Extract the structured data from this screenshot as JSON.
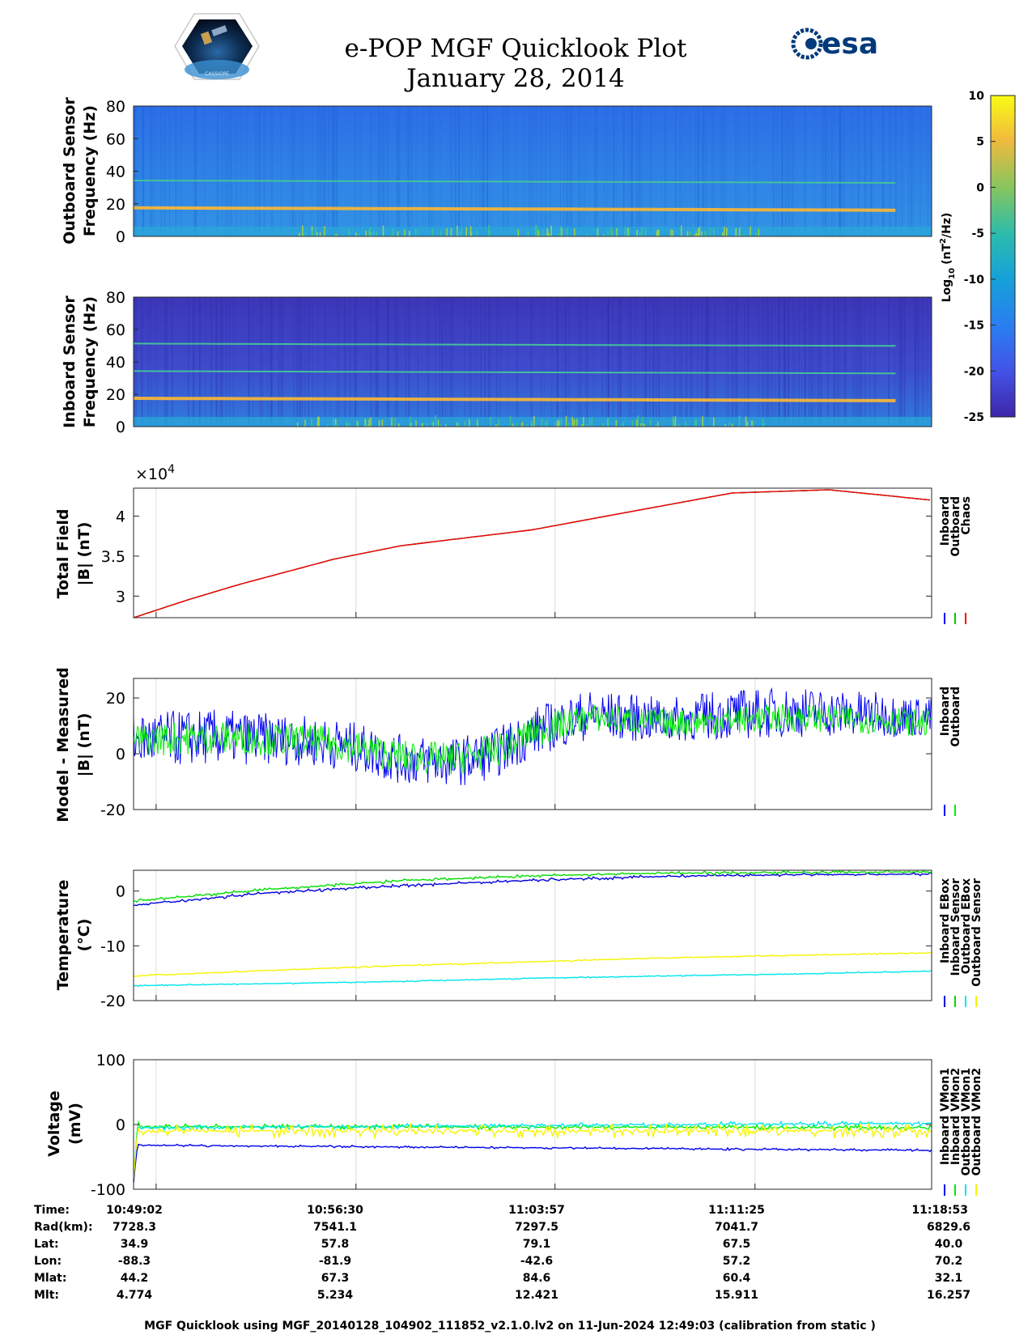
{
  "header": {
    "title": "e-POP MGF Quicklook Plot",
    "date": "January 28, 2014",
    "logo_left": "CASSIOPE",
    "logo_right": "esa"
  },
  "colorbar": {
    "label": "Log10 (nT²/Hz)",
    "label_main": "Log",
    "label_sub": "10",
    "label_rest": "(nT",
    "label_sup": "2",
    "label_end": "/Hz)",
    "ticks": [
      "10",
      "5",
      "0",
      "-5",
      "-10",
      "-15",
      "-20",
      "-25"
    ],
    "range": [
      -25,
      10
    ]
  },
  "footer": {
    "text": "MGF Quicklook using MGF_20140128_104902_111852_v2.1.0.lv2 on 11-Jun-2024 12:49:03 (calibration from static )"
  },
  "table": {
    "row_labels": [
      "Time:",
      "Rad(km):",
      "Lat:",
      "Lon:",
      "Mlat:",
      "Mlt:"
    ],
    "columns": [
      [
        "10:49:02",
        "7728.3",
        "34.9",
        "-88.3",
        "44.2",
        "4.774"
      ],
      [
        "10:56:30",
        "7541.1",
        "57.8",
        "-81.9",
        "67.3",
        "5.234"
      ],
      [
        "11:03:57",
        "7297.5",
        "79.1",
        "-42.6",
        "84.6",
        "12.421"
      ],
      [
        "11:11:25",
        "7041.7",
        "67.5",
        "57.2",
        "60.4",
        "15.911"
      ],
      [
        "11:18:53",
        "6829.6",
        "40.0",
        "70.2",
        "32.1",
        "16.257"
      ]
    ]
  },
  "chart_data": [
    {
      "type": "heatmap",
      "name": "outboard-spectrogram",
      "ylabel": [
        "Outboard Sensor",
        "Frequency (Hz)"
      ],
      "ylim": [
        0,
        80
      ],
      "yticks": [
        "80",
        "60",
        "40",
        "20",
        "0"
      ],
      "colorbar": "Log10 (nT^2/Hz)",
      "lines_hz": [
        17,
        34
      ],
      "notes": "Background ~ -15 log10; strong line near 17 Hz, weaker line near 34 Hz"
    },
    {
      "type": "heatmap",
      "name": "inboard-spectrogram",
      "ylabel": [
        "Inboard Sensor",
        "Frequency (Hz)"
      ],
      "ylim": [
        0,
        80
      ],
      "yticks": [
        "80",
        "60",
        "40",
        "20",
        "0"
      ],
      "colorbar": "Log10 (nT^2/Hz)",
      "lines_hz": [
        17,
        34,
        51
      ],
      "notes": "Background ~ -20 log10; lines near 17, 34 and 51 Hz"
    },
    {
      "type": "line",
      "name": "total-field",
      "ylabel": [
        "Total Field",
        "|B| (nT)"
      ],
      "multiplier": "×10",
      "exponent": "4",
      "ylim": [
        2.73,
        4.35
      ],
      "yticks": [
        3,
        3.5,
        4
      ],
      "ytick_labels": [
        "3",
        "3.5",
        "4"
      ],
      "x_minutes": [
        0,
        2,
        4,
        7.47,
        10,
        14.93,
        18,
        22.4,
        26,
        27.5,
        29.85
      ],
      "series": [
        {
          "name": "Inboard",
          "color": "#0000ff",
          "values": [
            2.73,
            2.95,
            3.15,
            3.46,
            3.63,
            3.83,
            4.02,
            4.29,
            4.33,
            4.28,
            4.2
          ]
        },
        {
          "name": "Outboard",
          "color": "#00cc00",
          "values": [
            2.73,
            2.95,
            3.15,
            3.46,
            3.63,
            3.83,
            4.02,
            4.29,
            4.33,
            4.28,
            4.2
          ]
        },
        {
          "name": "Chaos",
          "color": "#ff0000",
          "values": [
            2.73,
            2.95,
            3.15,
            3.46,
            3.63,
            3.83,
            4.02,
            4.29,
            4.33,
            4.28,
            4.2
          ]
        }
      ],
      "legend": [
        "Inboard",
        "Outboard",
        "Chaos"
      ]
    },
    {
      "type": "line",
      "name": "model-measured",
      "ylabel": [
        "Model - Measured",
        "|B| (nT)"
      ],
      "ylim": [
        -20,
        27
      ],
      "yticks": [
        -20,
        0,
        20
      ],
      "ytick_labels": [
        "-20",
        "0",
        "20"
      ],
      "x_minutes": [
        0,
        3,
        6,
        8,
        10,
        12,
        13.5,
        15,
        17,
        20,
        22,
        25,
        28,
        29.85
      ],
      "series": [
        {
          "name": "Inboard",
          "color": "#0000ee",
          "center": [
            5,
            6,
            5,
            3,
            -2,
            -3,
            0,
            8,
            14,
            12,
            14,
            15,
            14,
            13
          ],
          "amplitude": [
            10,
            10,
            9,
            9,
            9,
            9,
            9,
            9,
            9,
            8,
            9,
            9,
            8,
            7
          ]
        },
        {
          "name": "Outboard",
          "color": "#00ee00",
          "center": [
            5,
            6,
            5,
            3,
            -1,
            -2,
            1,
            8,
            13,
            11,
            12,
            13,
            12,
            11
          ],
          "amplitude": [
            6,
            6,
            6,
            6,
            6,
            6,
            6,
            6,
            5,
            5,
            5,
            5,
            5,
            5
          ]
        }
      ],
      "legend": [
        "Inboard",
        "Outboard"
      ]
    },
    {
      "type": "line",
      "name": "temperature",
      "ylabel": [
        "Temperature",
        "(°C)"
      ],
      "ylim": [
        -20,
        3.8
      ],
      "yticks": [
        -20,
        -10,
        0
      ],
      "ytick_labels": [
        "-20",
        "-10",
        "0"
      ],
      "x_minutes": [
        0,
        1,
        5,
        10,
        15,
        20,
        25,
        29.85
      ],
      "series": [
        {
          "name": "Inboard EBox",
          "color": "#0000dd",
          "values": [
            -2.6,
            -2.1,
            -0.3,
            1.0,
            2.0,
            2.7,
            3.0,
            3.1
          ]
        },
        {
          "name": "Inboard Sensor",
          "color": "#00dd00",
          "values": [
            -1.8,
            -1.4,
            0.3,
            1.9,
            2.8,
            3.3,
            3.4,
            3.5
          ]
        },
        {
          "name": "Outboard EBox",
          "color": "#00e5ee",
          "values": [
            -17.3,
            -17.2,
            -16.9,
            -16.5,
            -15.9,
            -15.5,
            -15.1,
            -14.6
          ]
        },
        {
          "name": "Outboard Sensor",
          "color": "#f5f500",
          "values": [
            -15.5,
            -15.3,
            -14.5,
            -13.6,
            -12.9,
            -12.2,
            -11.7,
            -11.3
          ]
        }
      ],
      "legend": [
        "Inboard EBox",
        "Inboard Sensor",
        "Outboard EBox",
        "Outboard Sensor"
      ]
    },
    {
      "type": "line",
      "name": "voltage",
      "ylabel": [
        "Voltage",
        "(mV)"
      ],
      "ylim": [
        -100,
        100
      ],
      "yticks": [
        -100,
        0,
        100
      ],
      "ytick_labels": [
        "-100",
        "0",
        "100"
      ],
      "x_minutes": [
        0,
        0.15,
        0.3,
        29.85
      ],
      "series": [
        {
          "name": "Inboard VMon1",
          "color": "#0000ee",
          "values": [
            -90,
            -30,
            -32,
            -40
          ]
        },
        {
          "name": "Inboard VMon2",
          "color": "#00ee00",
          "values": [
            -85,
            0,
            -3,
            -5
          ]
        },
        {
          "name": "Outboard VMon1",
          "color": "#00e5ee",
          "values": [
            -80,
            -5,
            -5,
            2
          ]
        },
        {
          "name": "Outboard VMon2",
          "color": "#f5f500",
          "values": [
            -80,
            -8,
            -10,
            -10
          ]
        }
      ],
      "legend": [
        "Inboard VMon1",
        "Inboard VMon2",
        "Outboard VMon1",
        "Outboard VMon2"
      ]
    }
  ]
}
